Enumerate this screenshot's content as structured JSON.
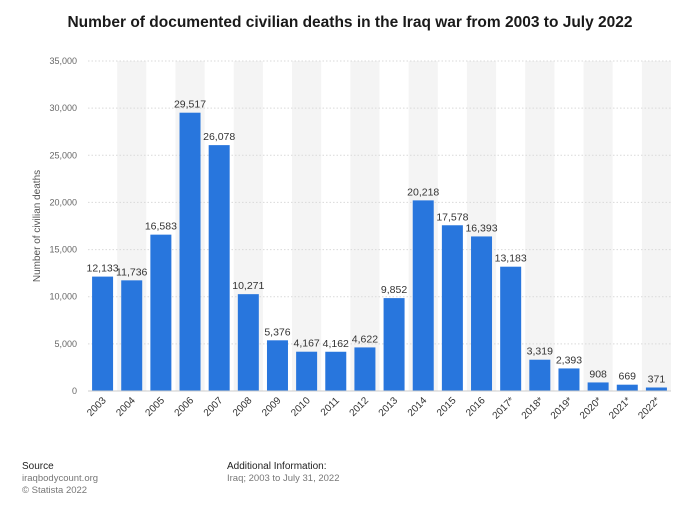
{
  "chart_data": {
    "type": "bar",
    "title": "Number of documented civilian deaths in the Iraq war from 2003 to July 2022",
    "xlabel": "",
    "ylabel": "Number of civilian deaths",
    "categories": [
      "2003",
      "2004",
      "2005",
      "2006",
      "2007",
      "2008",
      "2009",
      "2010",
      "2011",
      "2012",
      "2013",
      "2014",
      "2015",
      "2016",
      "2017*",
      "2018*",
      "2019*",
      "2020*",
      "2021*",
      "2022*"
    ],
    "values": [
      12133,
      11736,
      16583,
      29517,
      26078,
      10271,
      5376,
      4167,
      4162,
      4622,
      9852,
      20218,
      17578,
      16393,
      13183,
      3319,
      2393,
      908,
      669,
      371
    ],
    "value_labels": [
      "12,133",
      "11,736",
      "16,583",
      "29,517",
      "26,078",
      "10,271",
      "5,376",
      "4,167",
      "4,162",
      "4,622",
      "9,852",
      "20,218",
      "17,578",
      "16,393",
      "13,183",
      "3,319",
      "2,393",
      "908",
      "669",
      "371"
    ],
    "ylim": [
      0,
      35000
    ],
    "yticks": [
      0,
      5000,
      10000,
      15000,
      20000,
      25000,
      30000,
      35000
    ],
    "ytick_labels": [
      "0",
      "5,000",
      "10,000",
      "15,000",
      "20,000",
      "25,000",
      "30,000",
      "35,000"
    ],
    "grid": true,
    "bar_color": "#2876dd",
    "alt_band_color": "#f4f4f4"
  },
  "footer": {
    "source_heading": "Source",
    "source_lines": [
      "iraqbodycount.org",
      "© Statista 2022"
    ],
    "info_heading": "Additional Information:",
    "info_lines": [
      "Iraq; 2003 to July 31, 2022"
    ]
  }
}
